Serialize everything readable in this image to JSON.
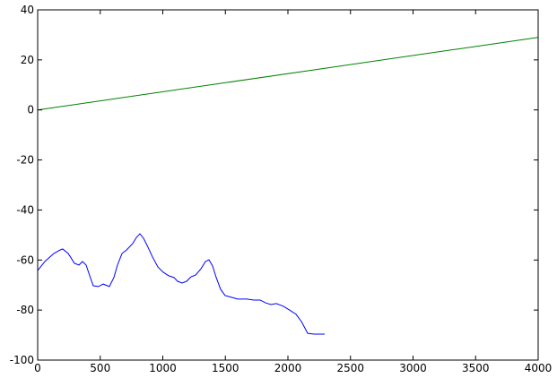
{
  "chart_data": {
    "type": "line",
    "series": [
      {
        "color": "#008000",
        "x": [
          0,
          4000
        ],
        "values": [
          0,
          29
        ]
      },
      {
        "color": "#0000ff",
        "x": [
          0,
          57,
          129,
          179,
          200,
          244,
          294,
          330,
          358,
          387,
          416,
          444,
          487,
          523,
          573,
          609,
          638,
          674,
          710,
          760,
          789,
          817,
          846,
          882,
          918,
          961,
          1004,
          1047,
          1090,
          1118,
          1154,
          1190,
          1226,
          1262,
          1305,
          1341,
          1369,
          1398,
          1427,
          1462,
          1498,
          1548,
          1599,
          1670,
          1728,
          1778,
          1821,
          1864,
          1907,
          1964,
          2022,
          2065,
          2108,
          2158,
          2208,
          2294
        ],
        "values": [
          -64.2,
          -60.6,
          -57.4,
          -56,
          -55.6,
          -57.4,
          -61.3,
          -62,
          -60.6,
          -62,
          -66.3,
          -70.3,
          -70.6,
          -69.6,
          -70.6,
          -67,
          -62,
          -57.4,
          -56,
          -53.4,
          -51,
          -49.5,
          -51.3,
          -54.9,
          -58.8,
          -62.8,
          -64.9,
          -66.3,
          -67,
          -68.5,
          -69.2,
          -68.5,
          -66.7,
          -66,
          -63.5,
          -60.6,
          -59.9,
          -62.4,
          -67,
          -71.7,
          -74.2,
          -74.9,
          -75.6,
          -75.6,
          -76,
          -76,
          -77.1,
          -77.8,
          -77.4,
          -78.5,
          -80.3,
          -81.7,
          -84.6,
          -89.3,
          -89.6,
          -89.6
        ]
      }
    ],
    "xlim": [
      0,
      4000
    ],
    "xticks": [
      0,
      500,
      1000,
      1500,
      2000,
      2500,
      3000,
      3500,
      4000
    ],
    "ylim": [
      -100,
      40
    ],
    "yticks": [
      -100,
      -80,
      -60,
      -40,
      -20,
      0,
      20,
      40
    ]
  }
}
